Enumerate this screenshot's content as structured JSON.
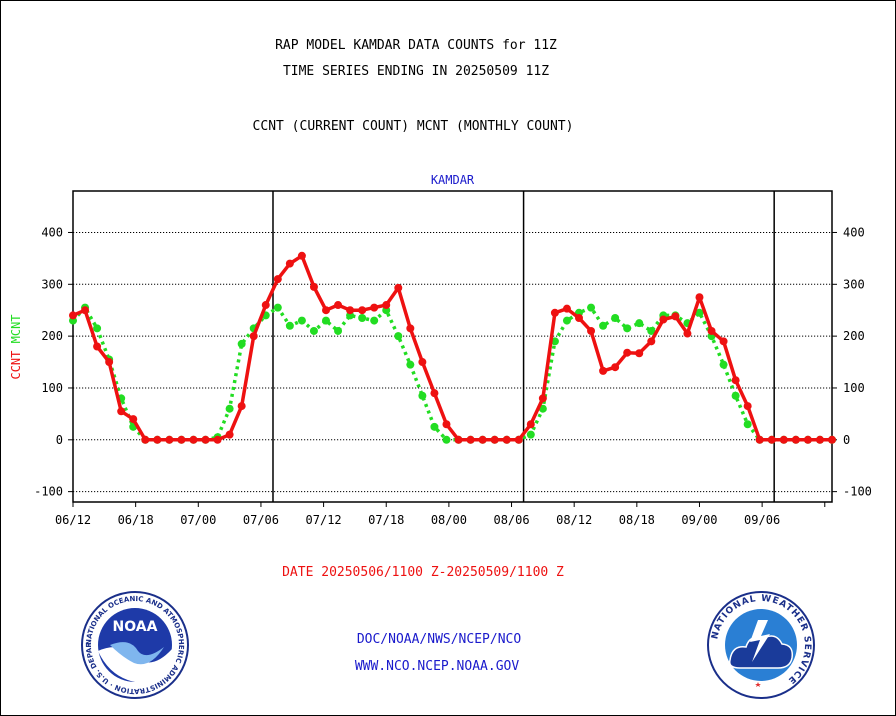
{
  "header": {
    "title_line1": "RAP MODEL KAMDAR DATA COUNTS for 11Z",
    "title_line2": "TIME SERIES ENDING IN 20250509 11Z",
    "subtitle": "CCNT (CURRENT COUNT) MCNT (MONTHLY COUNT)"
  },
  "footer": {
    "date_range": "DATE 20250506/1100 Z-20250509/1100 Z",
    "org_line": "DOC/NOAA/NWS/NCEP/NCO",
    "url_line": "WWW.NCO.NCEP.NOAA.GOV"
  },
  "logos": {
    "noaa_text": "NOAA",
    "noaa_ring": "NATIONAL OCEANIC AND ATMOSPHERIC ADMINISTRATION · U.S. DEPARTMENT OF COMMERCE",
    "nws_ring": "NATIONAL WEATHER SERVICE"
  },
  "colors": {
    "ccnt": "#ee1111",
    "mcnt": "#22dd22",
    "title_blue": "#1a1acc",
    "date_red": "#ee1111"
  },
  "chart_data": {
    "type": "line",
    "title": "KAMDAR",
    "ylabel_series": [
      "CCNT",
      "MCNT"
    ],
    "xlim": [
      1,
      64
    ],
    "ylim": [
      -120,
      480
    ],
    "yticks": [
      -100,
      0,
      100,
      200,
      300,
      400
    ],
    "xtick_positions": [
      1,
      6.2,
      11.4,
      16.6,
      21.8,
      27,
      32.2,
      37.4,
      42.6,
      47.8,
      53,
      58.2,
      63.4
    ],
    "xtick_labels": [
      "06/12",
      "06/18",
      "07/00",
      "07/06",
      "07/12",
      "07/18",
      "08/00",
      "08/06",
      "08/12",
      "08/18",
      "09/00",
      "09/06",
      ""
    ],
    "day_boundaries": [
      17.6,
      38.4,
      59.2
    ],
    "grid": true,
    "series": [
      {
        "name": "CCNT",
        "x": [
          1,
          2,
          3,
          4,
          5,
          6,
          7,
          8,
          9,
          10,
          11,
          12,
          13,
          14,
          15,
          16,
          17,
          18,
          19,
          20,
          21,
          22,
          23,
          24,
          25,
          26,
          27,
          28,
          29,
          30,
          31,
          32,
          33,
          34,
          35,
          36,
          37,
          38,
          39,
          40,
          41,
          42,
          43,
          44,
          45,
          46,
          47,
          48,
          49,
          50,
          51,
          52,
          53,
          54,
          55,
          56,
          57,
          58,
          59,
          60,
          61,
          62,
          63,
          64
        ],
        "values": [
          240,
          250,
          180,
          150,
          55,
          40,
          0,
          0,
          0,
          0,
          0,
          0,
          0,
          10,
          65,
          200,
          260,
          310,
          340,
          355,
          295,
          250,
          260,
          250,
          250,
          255,
          260,
          293,
          215,
          150,
          90,
          30,
          0,
          0,
          0,
          0,
          0,
          0,
          30,
          80,
          245,
          253,
          235,
          210,
          133,
          140,
          168,
          167,
          190,
          232,
          238,
          205,
          275,
          210,
          190,
          115,
          65,
          0,
          0,
          0,
          0,
          0,
          0,
          0
        ]
      },
      {
        "name": "MCNT",
        "x": [
          1,
          2,
          3,
          4,
          5,
          6,
          7,
          8,
          9,
          10,
          11,
          12,
          13,
          14,
          15,
          16,
          17,
          18,
          19,
          20,
          21,
          22,
          23,
          24,
          25,
          26,
          27,
          28,
          29,
          30,
          31,
          32,
          33,
          34,
          35,
          36,
          37,
          38,
          39,
          40,
          41,
          42,
          43,
          44,
          45,
          46,
          47,
          48,
          49,
          50,
          51,
          52,
          53,
          54,
          55,
          56,
          57,
          58,
          59,
          60,
          61,
          62,
          63,
          64
        ],
        "values": [
          230,
          255,
          215,
          155,
          80,
          25,
          0,
          0,
          0,
          0,
          0,
          0,
          5,
          60,
          185,
          215,
          240,
          255,
          220,
          230,
          210,
          230,
          210,
          240,
          235,
          230,
          250,
          200,
          145,
          85,
          25,
          0,
          0,
          0,
          0,
          0,
          0,
          0,
          10,
          60,
          190,
          230,
          245,
          255,
          220,
          235,
          215,
          225,
          210,
          240,
          240,
          225,
          245,
          200,
          145,
          85,
          30,
          0,
          0,
          0,
          0,
          0,
          0,
          0
        ]
      }
    ]
  }
}
